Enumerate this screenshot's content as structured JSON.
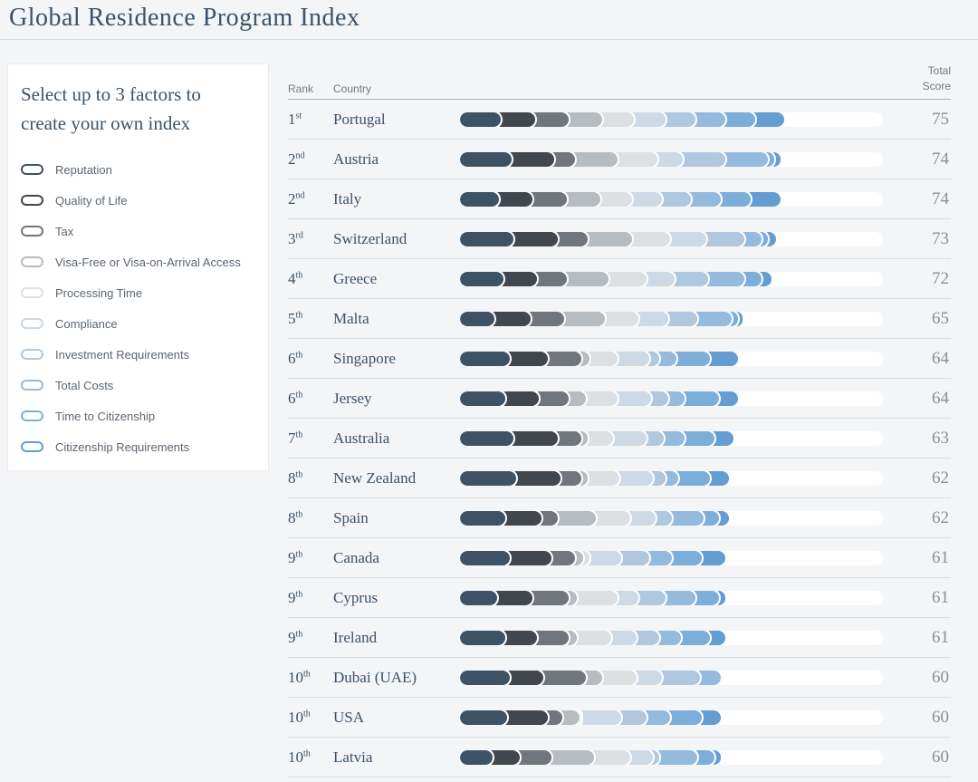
{
  "page": {
    "title": "Global Residence Program Index",
    "background_color": "#f3f5f7",
    "accent_text_color": "#3d5266"
  },
  "sidebar": {
    "heading": "Select up to 3 factors to create your own index",
    "factors": [
      {
        "label": "Reputation",
        "color": "#3e5266"
      },
      {
        "label": "Quality of Life",
        "color": "#42474d"
      },
      {
        "label": "Tax",
        "color": "#70767c"
      },
      {
        "label": "Visa-Free or Visa-on-Arrival Access",
        "color": "#b7bcc1"
      },
      {
        "label": "Processing Time",
        "color": "#dde0e3"
      },
      {
        "label": "Compliance",
        "color": "#cdd9e5"
      },
      {
        "label": "Investment Requirements",
        "color": "#afc8e0"
      },
      {
        "label": "Total Costs",
        "color": "#94bade"
      },
      {
        "label": "Time to Citizenship",
        "color": "#7dadd9"
      },
      {
        "label": "Citizenship Requirements",
        "color": "#639dd1"
      }
    ]
  },
  "table": {
    "headers": {
      "rank": "Rank",
      "country": "Country",
      "total_line1": "Total",
      "total_line2": "Score"
    }
  },
  "chart_data": {
    "type": "bar",
    "subtype": "horizontal-stacked",
    "title": "Global Residence Program Index",
    "xlim": [
      0,
      100
    ],
    "legend_position": "left-sidebar",
    "series_names": [
      "Reputation",
      "Quality of Life",
      "Tax",
      "Visa-Free or Visa-on-Arrival Access",
      "Processing Time",
      "Compliance",
      "Investment Requirements",
      "Total Costs",
      "Time to Citizenship",
      "Citizenship Requirements"
    ],
    "palette": [
      "#3e5266",
      "#42474d",
      "#70767c",
      "#b7bcc1",
      "#dde0e3",
      "#cdd9e5",
      "#afc8e0",
      "#94bade",
      "#7dadd9",
      "#639dd1"
    ],
    "rows": [
      {
        "rank": "1",
        "suffix": "st",
        "country": "Portugal",
        "total": 75,
        "segments": [
          8,
          8,
          8,
          8,
          7.5,
          7.5,
          7,
          7,
          7,
          7
        ]
      },
      {
        "rank": "2",
        "suffix": "nd",
        "country": "Austria",
        "total": 74,
        "segments": [
          10.5,
          10,
          5,
          10,
          9.5,
          6,
          10,
          10,
          1.5,
          1.5
        ]
      },
      {
        "rank": "2",
        "suffix": "nd",
        "country": "Italy",
        "total": 74,
        "segments": [
          7.5,
          8,
          8,
          8,
          7.5,
          7,
          7,
          7,
          7,
          7
        ]
      },
      {
        "rank": "3",
        "suffix": "rd",
        "country": "Switzerland",
        "total": 73,
        "segments": [
          11,
          10.5,
          7,
          10.5,
          9,
          8.5,
          9,
          4,
          1.5,
          2
        ]
      },
      {
        "rank": "4",
        "suffix": "th",
        "country": "Greece",
        "total": 72,
        "segments": [
          8.5,
          8,
          7,
          10,
          9,
          6.5,
          8,
          8.5,
          4,
          2.5
        ]
      },
      {
        "rank": "5",
        "suffix": "th",
        "country": "Malta",
        "total": 65,
        "segments": [
          6.5,
          8.5,
          8,
          9.5,
          8,
          7,
          7,
          8,
          1.5,
          1
        ]
      },
      {
        "rank": "6",
        "suffix": "th",
        "country": "Singapore",
        "total": 64,
        "segments": [
          10,
          9,
          8,
          2,
          6.5,
          7.5,
          2.5,
          4,
          8,
          6.5
        ]
      },
      {
        "rank": "6",
        "suffix": "th",
        "country": "Jersey",
        "total": 64,
        "segments": [
          9,
          8,
          7,
          4,
          7.5,
          8,
          4,
          4,
          8,
          4.5
        ]
      },
      {
        "rank": "7",
        "suffix": "th",
        "country": "Australia",
        "total": 63,
        "segments": [
          11,
          10.5,
          5.5,
          1.5,
          6,
          8,
          4,
          5,
          7,
          4.5
        ]
      },
      {
        "rank": "8",
        "suffix": "th",
        "country": "New Zealand",
        "total": 62,
        "segments": [
          11.5,
          10.5,
          5,
          1.5,
          7.5,
          8,
          3,
          3,
          7.5,
          4.5
        ]
      },
      {
        "rank": "8",
        "suffix": "th",
        "country": "Spain",
        "total": 62,
        "segments": [
          9,
          8.5,
          4,
          9,
          8,
          6,
          4,
          7.5,
          3.5,
          2.5
        ]
      },
      {
        "rank": "9",
        "suffix": "th",
        "country": "Canada",
        "total": 61,
        "segments": [
          10,
          10,
          5.5,
          2,
          1.5,
          7.5,
          6.5,
          5.5,
          7,
          5.5
        ]
      },
      {
        "rank": "9",
        "suffix": "th",
        "country": "Cyprus",
        "total": 61,
        "segments": [
          7,
          8.5,
          8.5,
          2,
          9.5,
          5,
          6.5,
          7,
          5.5,
          1.5
        ]
      },
      {
        "rank": "9",
        "suffix": "th",
        "country": "Ireland",
        "total": 61,
        "segments": [
          9,
          7.5,
          7.5,
          2,
          8,
          6,
          5.5,
          5,
          7,
          3.5
        ]
      },
      {
        "rank": "10",
        "suffix": "th",
        "country": "Dubai (UAE)",
        "total": 60,
        "segments": [
          10,
          8,
          10,
          4,
          8,
          6,
          9,
          5,
          0,
          0
        ]
      },
      {
        "rank": "10",
        "suffix": "th",
        "country": "USA",
        "total": 60,
        "segments": [
          9.5,
          9.5,
          3.5,
          4,
          0.5,
          9.5,
          6,
          5.5,
          7.5,
          4.5
        ]
      },
      {
        "rank": "10",
        "suffix": "th",
        "country": "Latvia",
        "total": 60,
        "segments": [
          6,
          6.5,
          7.5,
          10,
          8.5,
          5.5,
          1.5,
          9,
          4,
          1.5
        ]
      }
    ]
  }
}
